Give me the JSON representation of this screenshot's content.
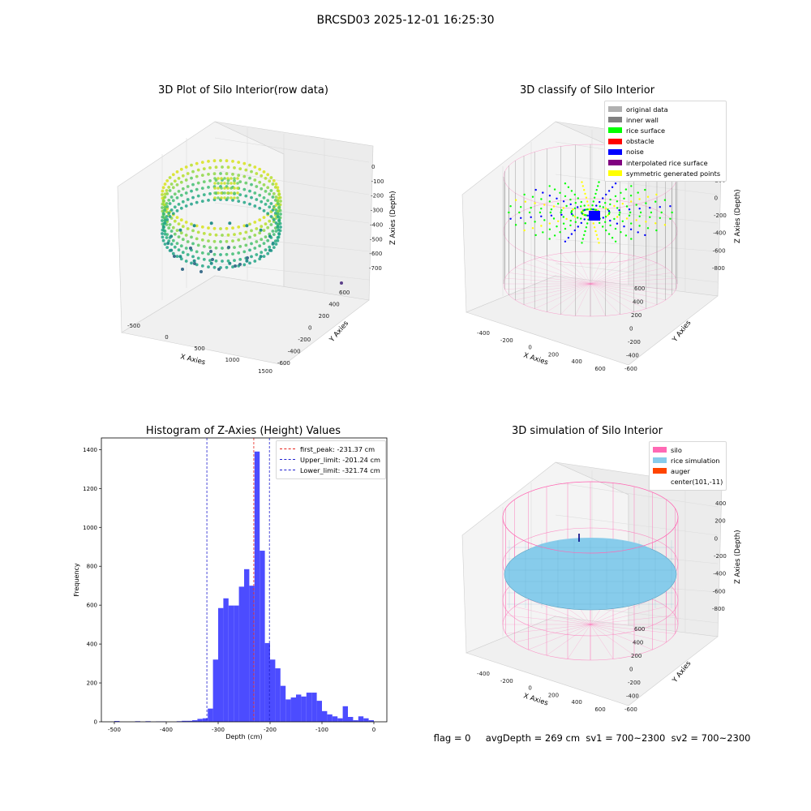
{
  "figure": {
    "suptitle": "BRCSD03 2025-12-01 16:25:30",
    "status": {
      "flag": "flag = 0",
      "avg_depth": "avgDepth = 269 cm",
      "sv1": "sv1 = 700~2300",
      "sv2": "sv2 = 700~2300"
    }
  },
  "colors": {
    "hist_bar": "#4c4cff",
    "peak_line": "#e8261e",
    "limit_line": "#2020d0",
    "silo": "#ff69b4",
    "rice": "#87cceb",
    "auger": "#ff4500"
  },
  "panels": {
    "raw": {
      "title": "3D Plot of Silo Interior(row data)",
      "xlabel": "X Axies",
      "ylabel": "Y Axies",
      "zlabel": "Z Axies (Depth)",
      "xticks": [
        "-500",
        "0",
        "500",
        "1000",
        "1500"
      ],
      "yticks": [
        "600",
        "400",
        "200",
        "0",
        "-200",
        "-400",
        "-600"
      ],
      "zticks": [
        "0",
        "-100",
        "-200",
        "-300",
        "-400",
        "-500",
        "-600",
        "-700"
      ]
    },
    "classify": {
      "title": "3D classify of Silo Interior",
      "xlabel": "X Axies",
      "ylabel": "Y Axies",
      "zlabel": "Z Axies (Depth)",
      "xticks": [
        "-400",
        "-200",
        "0",
        "200",
        "400",
        "600"
      ],
      "yticks": [
        "600",
        "400",
        "200",
        "0",
        "-200",
        "-400",
        "-600"
      ],
      "zticks": [
        "400",
        "200",
        "0",
        "-200",
        "-400",
        "-600",
        "-800"
      ],
      "legend": [
        {
          "label": "original data",
          "color": "#b0b0b0"
        },
        {
          "label": "inner wall",
          "color": "#808080"
        },
        {
          "label": "rice surface",
          "color": "#00ff00"
        },
        {
          "label": "obstacle",
          "color": "#ff0000"
        },
        {
          "label": "noise",
          "color": "#0000ff"
        },
        {
          "label": "interpolated rice surface",
          "color": "#800080"
        },
        {
          "label": "symmetric generated points",
          "color": "#ffff00"
        }
      ]
    },
    "simulation": {
      "title": "3D simulation of Silo Interior",
      "xlabel": "X Axies",
      "ylabel": "Y Axies",
      "zlabel": "Z Axies (Depth)",
      "xticks": [
        "-400",
        "-200",
        "0",
        "200",
        "400",
        "600"
      ],
      "yticks": [
        "600",
        "400",
        "200",
        "0",
        "-200",
        "-400",
        "-600"
      ],
      "zticks": [
        "400",
        "200",
        "0",
        "-200",
        "-400",
        "-600",
        "-800"
      ],
      "legend": [
        {
          "label": "silo",
          "color": "#ff69b4"
        },
        {
          "label": "rice simulation",
          "color": "#87cceb"
        },
        {
          "label": "auger",
          "color": "#ff4500"
        },
        {
          "label": "center(101,-11)",
          "color": ""
        }
      ]
    }
  },
  "chart_data": {
    "type": "bar",
    "title": "Histogram of Z-Axies (Height) Values",
    "xlabel": "Depth (cm)",
    "ylabel": "Frequency",
    "xlim": [
      -525,
      25
    ],
    "ylim": [
      0,
      1460
    ],
    "xticks": [
      -500,
      -400,
      -300,
      -200,
      -100,
      0
    ],
    "yticks": [
      0,
      200,
      400,
      600,
      800,
      1000,
      1200,
      1400
    ],
    "bin_width": 10,
    "bins": [
      {
        "x": -500,
        "count": 4
      },
      {
        "x": -460,
        "count": 3
      },
      {
        "x": -440,
        "count": 3
      },
      {
        "x": -420,
        "count": 2
      },
      {
        "x": -410,
        "count": 2
      },
      {
        "x": -380,
        "count": 3
      },
      {
        "x": -370,
        "count": 5
      },
      {
        "x": -360,
        "count": 5
      },
      {
        "x": -350,
        "count": 8
      },
      {
        "x": -340,
        "count": 15
      },
      {
        "x": -330,
        "count": 18
      },
      {
        "x": -320,
        "count": 68
      },
      {
        "x": -310,
        "count": 320
      },
      {
        "x": -300,
        "count": 585
      },
      {
        "x": -290,
        "count": 635
      },
      {
        "x": -280,
        "count": 598
      },
      {
        "x": -270,
        "count": 598
      },
      {
        "x": -260,
        "count": 695
      },
      {
        "x": -250,
        "count": 785
      },
      {
        "x": -240,
        "count": 700
      },
      {
        "x": -230,
        "count": 1390
      },
      {
        "x": -220,
        "count": 880
      },
      {
        "x": -210,
        "count": 405
      },
      {
        "x": -200,
        "count": 320
      },
      {
        "x": -190,
        "count": 275
      },
      {
        "x": -180,
        "count": 185
      },
      {
        "x": -170,
        "count": 115
      },
      {
        "x": -160,
        "count": 125
      },
      {
        "x": -150,
        "count": 140
      },
      {
        "x": -140,
        "count": 130
      },
      {
        "x": -130,
        "count": 150
      },
      {
        "x": -120,
        "count": 150
      },
      {
        "x": -110,
        "count": 108
      },
      {
        "x": -100,
        "count": 55
      },
      {
        "x": -90,
        "count": 38
      },
      {
        "x": -80,
        "count": 28
      },
      {
        "x": -70,
        "count": 18
      },
      {
        "x": -60,
        "count": 80
      },
      {
        "x": -50,
        "count": 25
      },
      {
        "x": -40,
        "count": 8
      },
      {
        "x": -30,
        "count": 28
      },
      {
        "x": -20,
        "count": 18
      },
      {
        "x": -10,
        "count": 8
      }
    ],
    "vlines": [
      {
        "label": "first_peak: -231.37 cm",
        "value": -231.37,
        "color": "#e8261e"
      },
      {
        "label": "Upper_limit: -201.24 cm",
        "value": -201.24,
        "color": "#2020d0"
      },
      {
        "label": "Lower_limit: -321.74 cm",
        "value": -321.74,
        "color": "#2020d0"
      }
    ],
    "legend_position": "top-right",
    "grid": false
  }
}
